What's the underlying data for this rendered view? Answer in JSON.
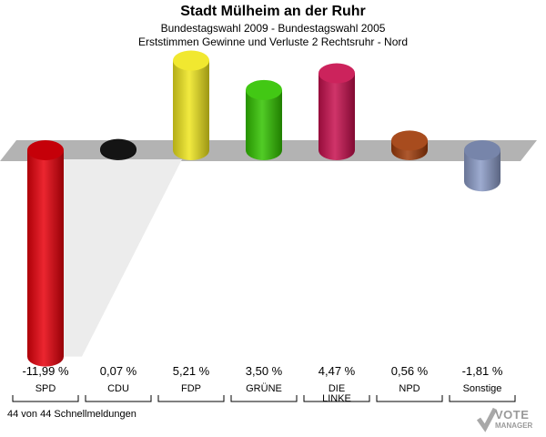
{
  "title": "Stadt Mülheim an der Ruhr",
  "subtitle1": "Bundestagswahl 2009 - Bundestagswahl 2005",
  "subtitle2": "Erststimmen Gewinne und Verluste 2 Rechtsruhr - Nord",
  "footer": "44 von 44 Schnellmeldungen",
  "logo": {
    "line1": "VOTE",
    "line2": "MANAGER"
  },
  "chart_data": {
    "type": "bar",
    "categories": [
      "SPD",
      "CDU",
      "FDP",
      "GRÜNE",
      "DIE LINKE",
      "NPD",
      "Sonstige"
    ],
    "category_lines": [
      [
        "SPD"
      ],
      [
        "CDU"
      ],
      [
        "FDP"
      ],
      [
        "GRÜNE"
      ],
      [
        "DIE",
        "LINKE"
      ],
      [
        "NPD"
      ],
      [
        "Sonstige"
      ]
    ],
    "values": [
      -11.99,
      0.07,
      5.21,
      3.5,
      4.47,
      0.56,
      -1.81
    ],
    "value_labels": [
      "-11,99 %",
      "0,07 %",
      "5,21 %",
      "3,50 %",
      "4,47 %",
      "0,56 %",
      "-1,81 %"
    ],
    "colors": [
      "#e8000b",
      "#000000",
      "#f0e61e",
      "#32c300",
      "#c8104e",
      "#a03c0a",
      "#8c9cc8"
    ],
    "ylim": [
      -12,
      6
    ],
    "baseline": 0,
    "grid": false,
    "legend": "none"
  }
}
